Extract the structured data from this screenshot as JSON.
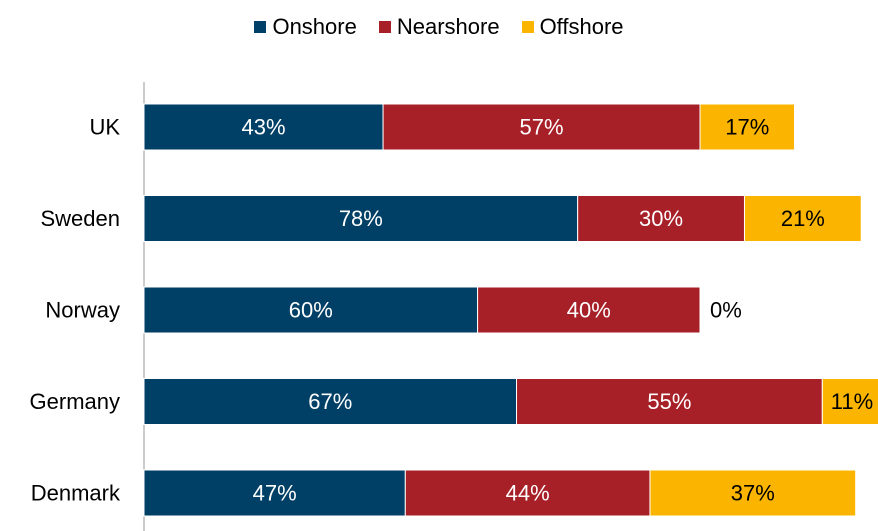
{
  "chart_data": {
    "type": "bar",
    "orientation": "horizontal",
    "stacked": true,
    "categories": [
      "UK",
      "Sweden",
      "Norway",
      "Germany",
      "Denmark"
    ],
    "series": [
      {
        "name": "Onshore",
        "color": "#003f66",
        "values": [
          43,
          78,
          60,
          67,
          47
        ]
      },
      {
        "name": "Nearshore",
        "color": "#a71f27",
        "values": [
          57,
          30,
          40,
          55,
          44
        ]
      },
      {
        "name": "Offshore",
        "color": "#fbb400",
        "values": [
          17,
          21,
          0,
          11,
          37
        ]
      }
    ],
    "value_suffix": "%",
    "legend_position": "top",
    "grid": false
  }
}
